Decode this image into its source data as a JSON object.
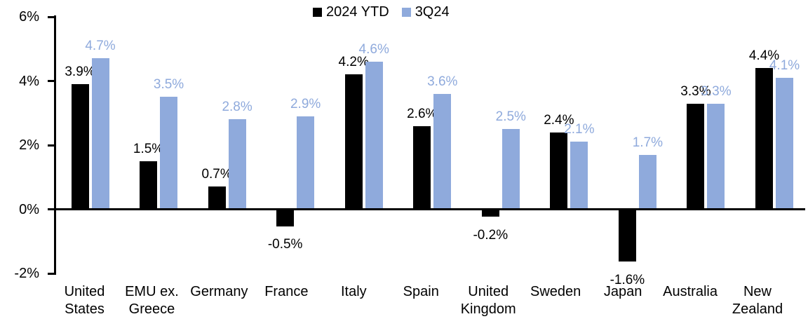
{
  "chart_data": {
    "type": "bar",
    "title": "",
    "categories": [
      "United States",
      "EMU ex. Greece",
      "Germany",
      "France",
      "Italy",
      "Spain",
      "United Kingdom",
      "Sweden",
      "Japan",
      "Australia",
      "New Zealand"
    ],
    "series": [
      {
        "name": "2024 YTD",
        "color": "#000000",
        "values": [
          3.9,
          1.5,
          0.7,
          -0.5,
          4.2,
          2.6,
          -0.2,
          2.4,
          -1.6,
          3.3,
          4.4
        ],
        "labels": [
          "3.9%",
          "1.5%",
          "0.7%",
          "-0.5%",
          "4.2%",
          "2.6%",
          "-0.2%",
          "2.4%",
          "-1.6%",
          "3.3%",
          "4.4%"
        ]
      },
      {
        "name": "3Q24",
        "color": "#8FAADC",
        "values": [
          4.7,
          3.5,
          2.8,
          2.9,
          4.6,
          3.6,
          2.5,
          2.1,
          1.7,
          3.3,
          4.1
        ],
        "labels": [
          "4.7%",
          "3.5%",
          "2.8%",
          "2.9%",
          "4.6%",
          "3.6%",
          "2.5%",
          "2.1%",
          "1.7%",
          "3.3%",
          "4.1%"
        ]
      }
    ],
    "ylim": [
      -2,
      6
    ],
    "yticks": [
      {
        "value": 6,
        "label": "6%"
      },
      {
        "value": 4,
        "label": "4%"
      },
      {
        "value": 2,
        "label": "2%"
      },
      {
        "value": 0,
        "label": "0%"
      },
      {
        "value": -2,
        "label": "-2%"
      }
    ],
    "grid": false,
    "legend_position": "top-center",
    "axis_color": "#000000",
    "xlabel": "",
    "ylabel": ""
  }
}
